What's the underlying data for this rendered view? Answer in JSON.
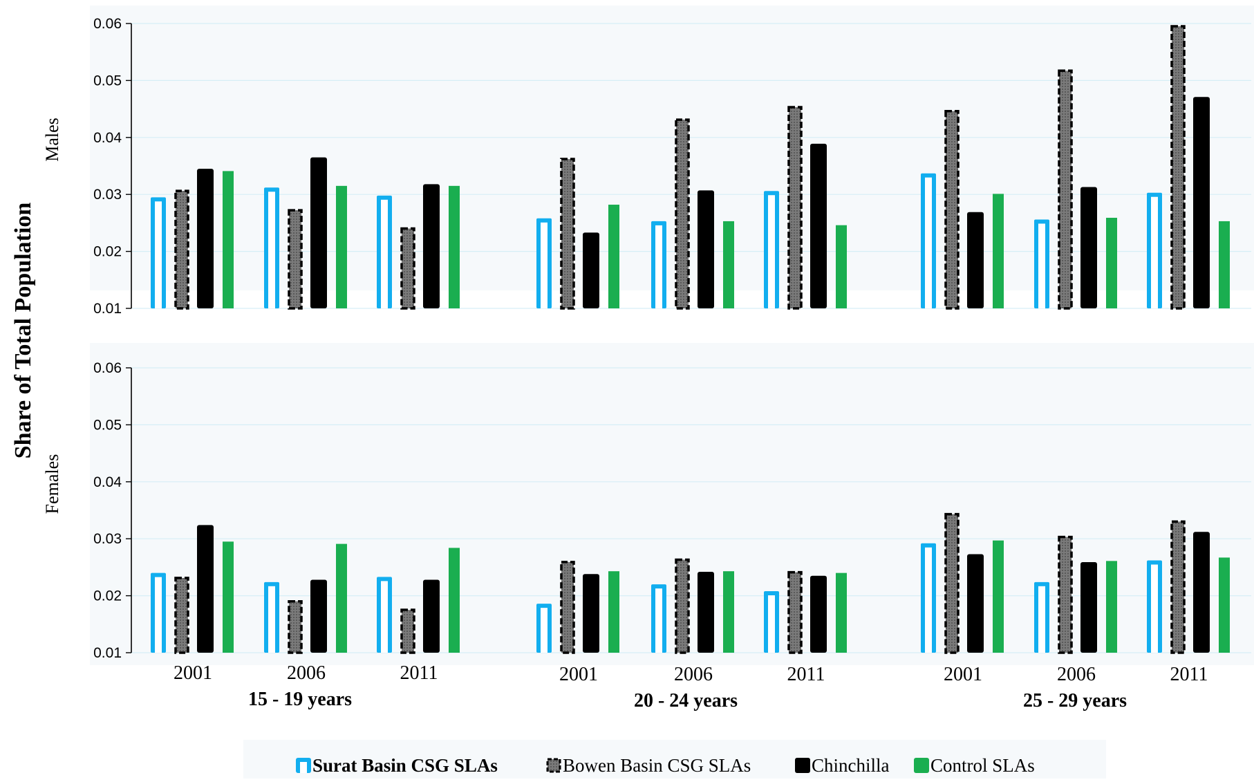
{
  "chart_data": {
    "type": "bar",
    "ylabel": "Share of Total Population",
    "groups": [
      "15 - 19  years",
      "20 - 24  years",
      "25 - 29  years"
    ],
    "years": [
      "2001",
      "2006",
      "2011"
    ],
    "ylim": [
      0.01,
      0.06
    ],
    "yticks": [
      "0.01",
      "0.02",
      "0.03",
      "0.04",
      "0.05",
      "0.06"
    ],
    "grid": true,
    "legend_position": "bottom",
    "series": [
      {
        "name": "Surat Basin CSG SLAs",
        "color": "#12AEEF",
        "style": "outline"
      },
      {
        "name": "Bowen Basin CSG SLAs",
        "color": "#000000",
        "style": "dashed"
      },
      {
        "name": "Chinchilla",
        "color": "#000000",
        "style": "solid"
      },
      {
        "name": "Control SLAs",
        "color": "#1AAE50",
        "style": "solid"
      }
    ],
    "panels": [
      {
        "label": "Males",
        "values": {
          "Surat Basin CSG SLAs": [
            0.0295,
            0.0312,
            0.0298,
            0.0258,
            0.0253,
            0.0306,
            0.0337,
            0.0256,
            0.0303
          ],
          "Bowen Basin CSG SLAs": [
            0.0308,
            0.0274,
            0.0242,
            0.0364,
            0.0433,
            0.0455,
            0.0448,
            0.0519,
            0.0597
          ],
          "Chinchilla": [
            0.0345,
            0.0365,
            0.0318,
            0.0233,
            0.0307,
            0.0389,
            0.0269,
            0.0313,
            0.0471
          ],
          "Control SLAs": [
            0.0341,
            0.0315,
            0.0315,
            0.0282,
            0.0253,
            0.0246,
            0.0301,
            0.0259,
            0.0253
          ]
        }
      },
      {
        "label": "Females",
        "values": {
          "Surat Basin CSG SLAs": [
            0.024,
            0.0224,
            0.0233,
            0.0186,
            0.022,
            0.0208,
            0.0292,
            0.0224,
            0.0262
          ],
          "Bowen Basin CSG SLAs": [
            0.0233,
            0.0192,
            0.0177,
            0.0261,
            0.0265,
            0.0243,
            0.0345,
            0.0305,
            0.0332
          ],
          "Chinchilla": [
            0.0324,
            0.0228,
            0.0228,
            0.0238,
            0.0242,
            0.0235,
            0.0273,
            0.0259,
            0.0312
          ],
          "Control SLAs": [
            0.0295,
            0.0291,
            0.0284,
            0.0243,
            0.0243,
            0.024,
            0.0297,
            0.0261,
            0.0267
          ]
        }
      }
    ]
  }
}
